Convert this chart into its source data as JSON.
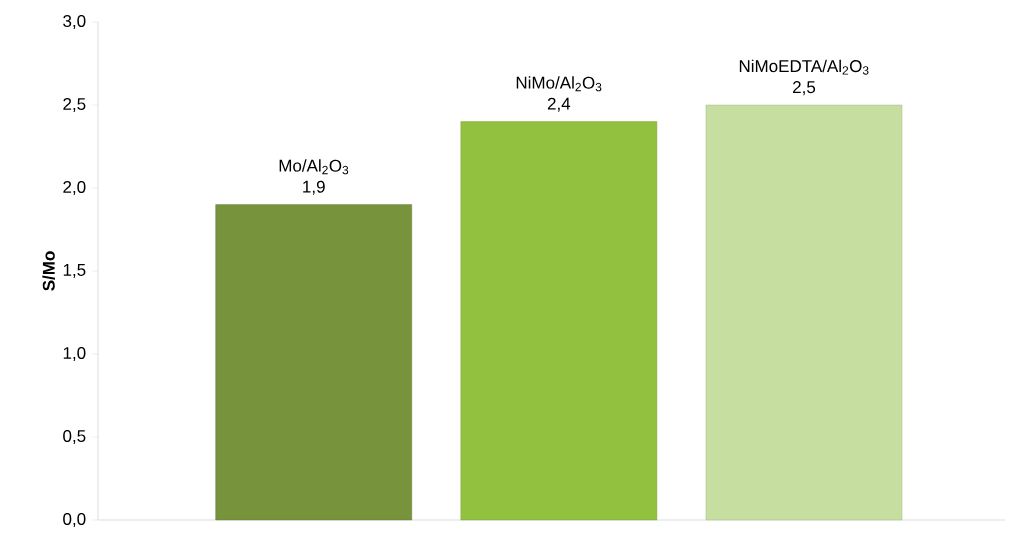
{
  "chart_data": {
    "type": "bar",
    "ylabel": "**S/Mo**",
    "categories": [
      "Mo/Al$_{2}$O$_{3}$",
      "NiMo/Al$_{2}$O$_{3}$",
      "NiMoEDTA/Al$_{2}$O$_{3}$"
    ],
    "values": [
      1.9,
      2.4,
      2.5
    ],
    "value_labels": [
      "1,9",
      "2,4",
      "2,5"
    ],
    "colors": [
      "#77933c",
      "#92c140",
      "#c6dea0"
    ],
    "ylim": [
      0,
      3
    ],
    "yticks": [
      {
        "value": 0,
        "label": "0,0"
      },
      {
        "value": 0.5,
        "label": "0,5"
      },
      {
        "value": 1,
        "label": "1,0"
      },
      {
        "value": 1.5,
        "label": "1,5"
      },
      {
        "value": 2,
        "label": "2,0"
      },
      {
        "value": 2.5,
        "label": "2,5"
      },
      {
        "value": 3,
        "label": "3,0"
      }
    ],
    "grid": false
  }
}
